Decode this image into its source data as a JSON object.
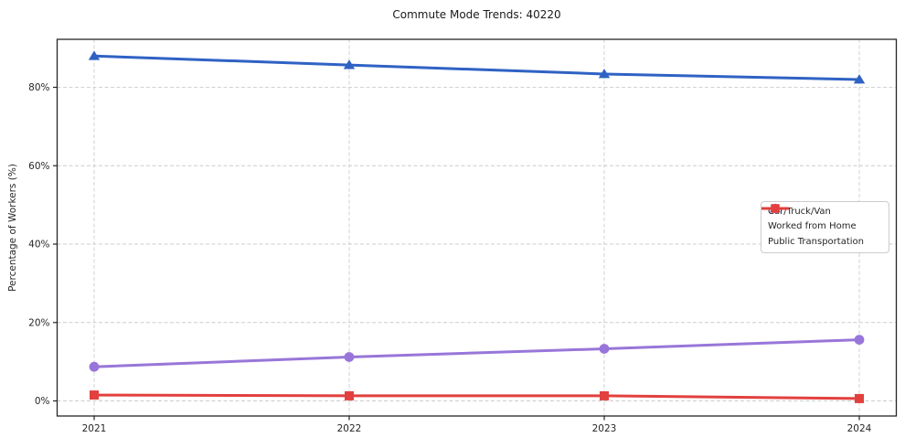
{
  "chart_data": {
    "type": "line",
    "title": "Commute Mode Trends: 40220",
    "xlabel": "",
    "ylabel": "Percentage of Workers (%)",
    "x": [
      2021,
      2022,
      2023,
      2024
    ],
    "x_tick_labels": [
      "2021",
      "2022",
      "2023",
      "2024"
    ],
    "y_ticks": [
      0,
      20,
      40,
      60,
      80
    ],
    "y_tick_labels": [
      "0%",
      "20%",
      "40%",
      "60%",
      "80%"
    ],
    "ylim": [
      -3.85,
      92.25
    ],
    "grid": true,
    "grid_style": "dashed",
    "legend_position": "center right",
    "series": [
      {
        "name": "Car/Truck/Van",
        "marker": "triangle",
        "color": "#2f62c4",
        "values": [
          88.0,
          85.7,
          83.4,
          82.0
        ]
      },
      {
        "name": "Worked from Home",
        "marker": "circle",
        "color": "#9876d9",
        "values": [
          8.7,
          11.2,
          13.3,
          15.6
        ]
      },
      {
        "name": "Public Transportation",
        "marker": "square",
        "color": "#e2403e",
        "values": [
          1.5,
          1.3,
          1.3,
          0.6
        ]
      }
    ],
    "colors": {
      "grid": "#cccccc",
      "spine": "#262626",
      "text": "#262626",
      "background": "#ffffff"
    }
  }
}
